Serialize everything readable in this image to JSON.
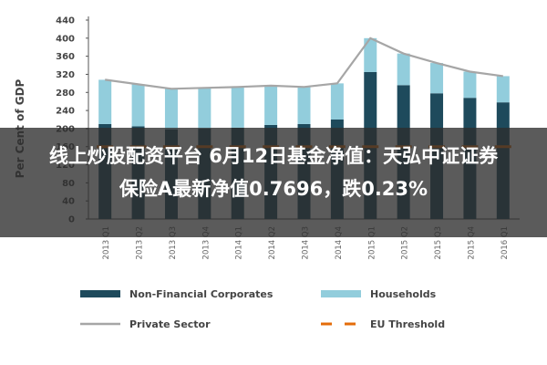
{
  "chart_data": {
    "type": "bar",
    "stacked": true,
    "ylabel": "Per Cent of GDP",
    "ylim": [
      0,
      440
    ],
    "yticks": [
      0,
      40,
      80,
      120,
      160,
      200,
      240,
      280,
      320,
      360,
      400,
      440
    ],
    "categories": [
      "2013 Q1",
      "2013 Q2",
      "2013 Q3",
      "2013 Q4",
      "2014 Q1",
      "2014 Q2",
      "2014 Q3",
      "2014 Q4",
      "2015 Q1",
      "2015 Q2",
      "2015 Q3",
      "2015 Q4",
      "2016 Q1"
    ],
    "series": [
      {
        "name": "Non-Financial Corporates",
        "kind": "bar",
        "color": "#1e4a5c",
        "values": [
          210,
          205,
          198,
          200,
          202,
          208,
          210,
          220,
          325,
          296,
          278,
          268,
          258
        ]
      },
      {
        "name": "Households",
        "kind": "bar",
        "color": "#92cddc",
        "values": [
          98,
          93,
          90,
          90,
          90,
          87,
          82,
          80,
          75,
          70,
          67,
          58,
          58
        ]
      },
      {
        "name": "Private Sector",
        "kind": "line",
        "color": "#a6a6a6",
        "values": [
          308,
          298,
          288,
          290,
          292,
          295,
          292,
          300,
          400,
          366,
          345,
          326,
          316
        ]
      },
      {
        "name": "EU Threshold",
        "kind": "dashed-line",
        "color": "#e46c0a",
        "values": [
          160,
          160,
          160,
          160,
          160,
          160,
          160,
          160,
          160,
          160,
          160,
          160,
          160
        ]
      }
    ],
    "legend": "bottom",
    "grid": false
  },
  "overlay": {
    "line1": "线上炒股配资平台 6月12日基金净值：天弘中证证券",
    "line2": "保险A最新净值0.7696，跌0.23%"
  }
}
